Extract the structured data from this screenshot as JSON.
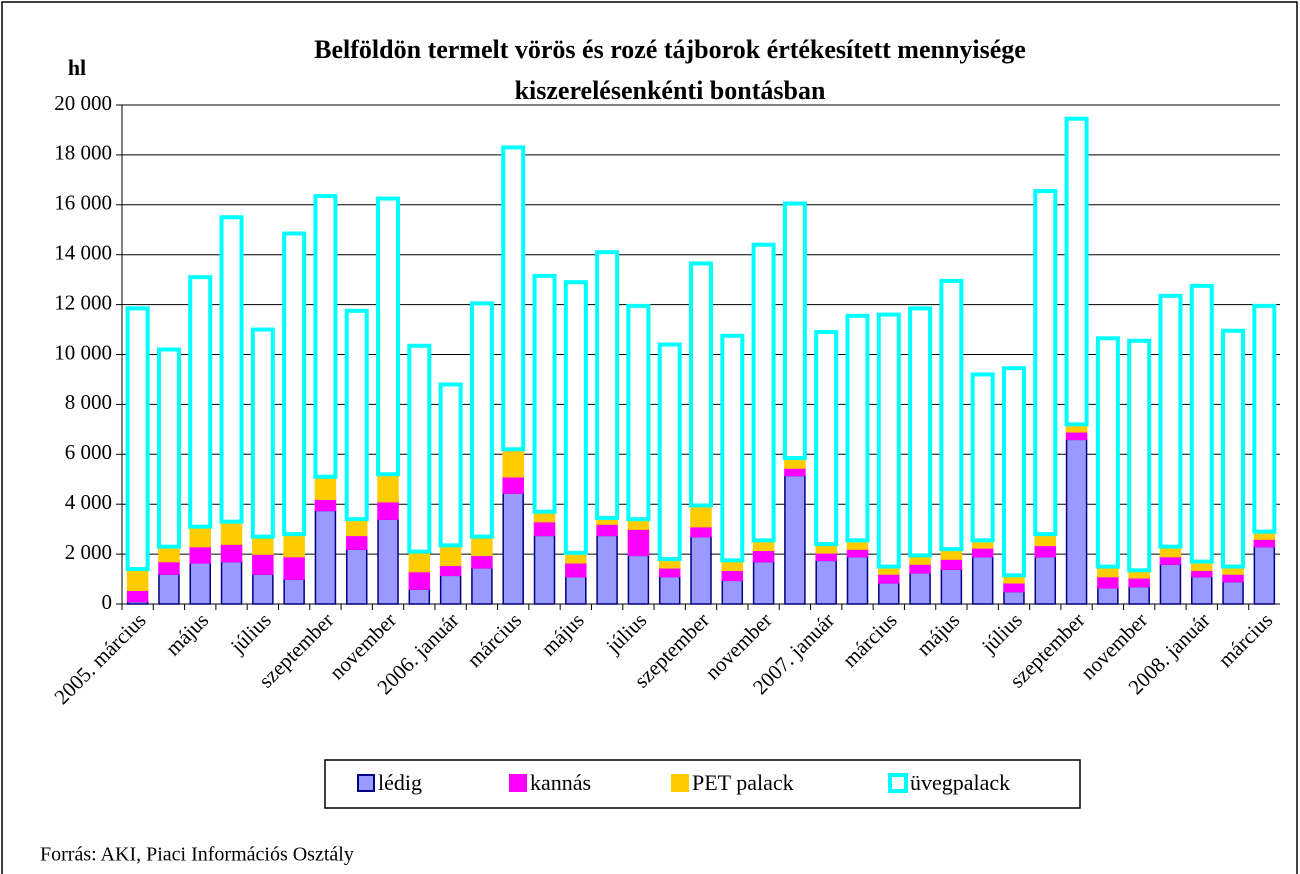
{
  "chart_data": {
    "type": "stacked-bar",
    "title": [
      "Belföldön termelt vörös és rozé tájborok értékesített mennyisége",
      "kiszerelésenkénti bontásban"
    ],
    "y_label": "hl",
    "source": "Forrás: AKI, Piaci Információs Osztály",
    "categories": [
      "2005. március",
      null,
      "május",
      null,
      "július",
      null,
      "szeptember",
      null,
      "november",
      null,
      "2006. január",
      null,
      "március",
      null,
      "május",
      null,
      "július",
      null,
      "szeptember",
      null,
      "november",
      null,
      "2007. január",
      null,
      "március",
      null,
      "május",
      null,
      "július",
      null,
      "szeptember",
      null,
      "november",
      null,
      "2008. január",
      null,
      "március"
    ],
    "series": [
      {
        "name": "lédig",
        "color": "#9999ff",
        "edgecolor": "#000080",
        "values": [
          100,
          1200,
          1650,
          1700,
          1200,
          1000,
          3750,
          2200,
          3400,
          600,
          1150,
          1450,
          4450,
          2750,
          1100,
          2750,
          1950,
          1100,
          2700,
          950,
          1700,
          5150,
          1750,
          1900,
          850,
          1250,
          1400,
          1900,
          500,
          1900,
          6600,
          650,
          700,
          1600,
          1100,
          900,
          2300
        ]
      },
      {
        "name": "kannás",
        "color": "#ff00ff",
        "edgecolor": "#ff00ff",
        "values": [
          450,
          500,
          650,
          700,
          800,
          900,
          450,
          550,
          700,
          700,
          400,
          500,
          650,
          550,
          550,
          450,
          1050,
          350,
          400,
          400,
          450,
          300,
          300,
          300,
          350,
          350,
          400,
          350,
          350,
          450,
          300,
          450,
          350,
          300,
          250,
          300,
          300
        ]
      },
      {
        "name": "PET palack",
        "color": "#ffcc00",
        "edgecolor": "#ffcc00",
        "values": [
          850,
          600,
          800,
          900,
          700,
          900,
          900,
          650,
          1100,
          800,
          800,
          750,
          1100,
          400,
          400,
          250,
          400,
          350,
          850,
          400,
          400,
          400,
          350,
          350,
          300,
          350,
          400,
          300,
          300,
          450,
          300,
          400,
          300,
          400,
          350,
          300,
          300
        ]
      },
      {
        "name": "üvegpalack",
        "color": "#ffffff",
        "edgecolor": "#00ffff",
        "values": [
          10450,
          7900,
          10000,
          12200,
          8300,
          12050,
          11250,
          8350,
          11050,
          8250,
          6450,
          9350,
          12100,
          9450,
          10850,
          10650,
          8550,
          8600,
          9700,
          9000,
          11850,
          10200,
          8500,
          9000,
          10100,
          9900,
          10750,
          6650,
          8300,
          13750,
          12250,
          9150,
          9200,
          10050,
          11050,
          9450,
          9050
        ]
      }
    ],
    "ylim": [
      0,
      20000
    ],
    "yticks": [
      0,
      {
        "value": 2000,
        "label": "2 000"
      },
      {
        "value": 4000,
        "label": "4 000"
      },
      {
        "value": 6000,
        "label": "6 000"
      },
      {
        "value": 8000,
        "label": "8 000"
      },
      {
        "value": 10000,
        "label": "10 000"
      },
      {
        "value": 12000,
        "label": "12 000"
      },
      {
        "value": 14000,
        "label": "14 000"
      },
      {
        "value": 16000,
        "label": "16 000"
      },
      {
        "value": 18000,
        "label": "18 000"
      },
      {
        "value": 20000,
        "label": "20 000"
      }
    ],
    "grid": true
  }
}
